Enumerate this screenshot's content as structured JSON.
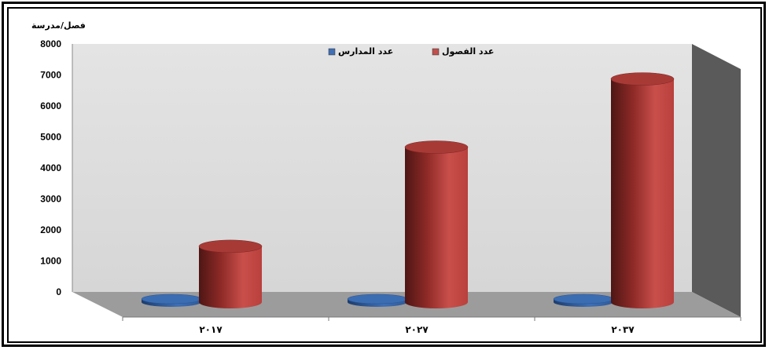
{
  "chart_data": {
    "type": "bar",
    "title": "",
    "ylabel": "فصل/مدرسة",
    "xlabel": "",
    "ylim": [
      0,
      8000
    ],
    "yticks": [
      0,
      1000,
      2000,
      3000,
      4000,
      5000,
      6000,
      7000,
      8000
    ],
    "categories": [
      "٢٠١٧",
      "٢٠٢٧",
      "٢٠٣٧"
    ],
    "series": [
      {
        "name": "عدد المدارس",
        "values": [
          40,
          60,
          90
        ],
        "color": "#3f6fb5"
      },
      {
        "name": "عدد الفصول",
        "values": [
          1800,
          5000,
          7200
        ],
        "color": "#c0504d"
      }
    ],
    "legend_position": "top-center",
    "style": "3d-cylinder",
    "grid": false
  }
}
